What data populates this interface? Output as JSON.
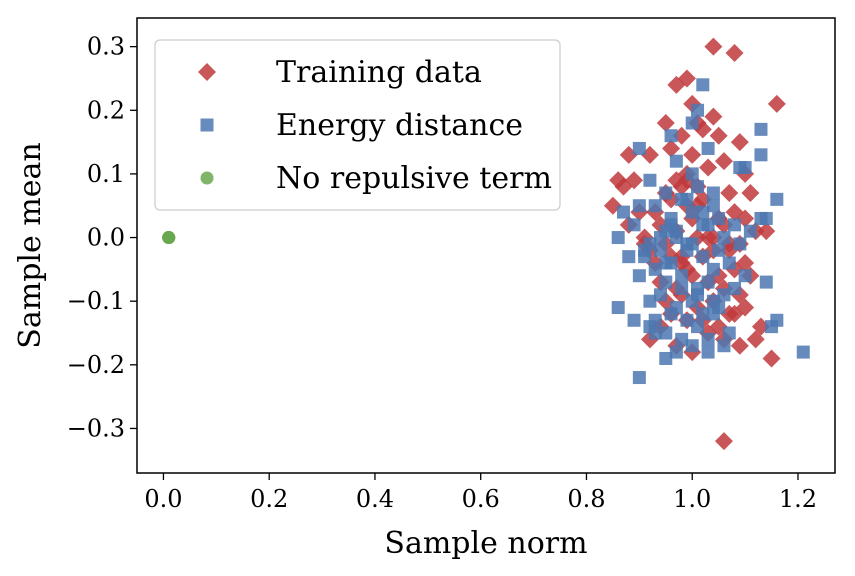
{
  "chart_data": {
    "type": "scatter",
    "title": "",
    "xlabel": "Sample norm",
    "ylabel": "Sample mean",
    "xlim": [
      -0.05,
      1.27
    ],
    "ylim": [
      -0.37,
      0.345
    ],
    "xticks": [
      0.0,
      0.2,
      0.4,
      0.6,
      0.8,
      1.0,
      1.2
    ],
    "xtick_labels": [
      "0.0",
      "0.2",
      "0.4",
      "0.6",
      "0.8",
      "1.0",
      "1.2"
    ],
    "yticks": [
      -0.3,
      -0.2,
      -0.1,
      0.0,
      0.1,
      0.2,
      0.3
    ],
    "ytick_labels": [
      "−0.3",
      "−0.2",
      "−0.1",
      "0.0",
      "0.1",
      "0.2",
      "0.3"
    ],
    "grid": false,
    "legend_position": "top-left",
    "series": [
      {
        "name": "Training data",
        "marker": "diamond",
        "color": "#c0383c",
        "x": [
          1.04,
          1.08,
          0.99,
          0.97,
          0.95,
          1.16,
          1.0,
          1.04,
          1.01,
          1.02,
          0.98,
          0.96,
          1.05,
          1.09,
          0.88,
          0.92,
          1.0,
          0.86,
          0.99,
          1.03,
          1.06,
          1.1,
          0.87,
          0.89,
          0.95,
          0.97,
          0.98,
          1.01,
          1.07,
          0.85,
          0.9,
          0.93,
          0.96,
          0.99,
          1.02,
          1.05,
          1.08,
          1.11,
          1.14,
          0.88,
          0.91,
          0.94,
          0.97,
          1.0,
          1.03,
          1.06,
          1.09,
          1.12,
          0.92,
          0.95,
          0.98,
          1.01,
          1.04,
          1.07,
          1.1,
          0.93,
          0.96,
          0.99,
          1.02,
          1.05,
          1.08,
          1.11,
          0.94,
          0.97,
          1.0,
          1.03,
          1.06,
          1.09,
          0.95,
          0.98,
          1.01,
          1.04,
          1.07,
          1.1,
          0.96,
          0.99,
          1.02,
          1.05,
          1.08,
          0.94,
          0.97,
          1.0,
          1.03,
          1.06,
          1.09,
          1.12,
          1.13,
          0.92,
          0.98,
          1.01,
          1.04,
          1.07,
          1.1,
          1.15,
          0.91,
          0.99,
          1.06
        ],
        "y": [
          0.3,
          0.29,
          0.25,
          0.24,
          0.18,
          0.21,
          0.21,
          0.19,
          0.18,
          0.17,
          0.16,
          0.14,
          0.16,
          0.15,
          0.13,
          0.13,
          0.13,
          0.09,
          0.1,
          0.11,
          0.12,
          0.1,
          0.08,
          0.09,
          0.07,
          0.09,
          0.08,
          0.08,
          0.07,
          0.05,
          0.04,
          0.04,
          0.06,
          0.05,
          0.06,
          0.03,
          0.04,
          0.07,
          0.01,
          0.02,
          0.0,
          0.02,
          0.01,
          0.03,
          0.0,
          0.02,
          -0.01,
          0.01,
          -0.02,
          -0.01,
          -0.03,
          0.0,
          -0.02,
          -0.01,
          -0.04,
          -0.04,
          -0.03,
          -0.05,
          -0.03,
          -0.06,
          -0.05,
          -0.06,
          -0.07,
          -0.08,
          -0.06,
          -0.07,
          -0.08,
          -0.09,
          -0.1,
          -0.09,
          -0.11,
          -0.1,
          -0.12,
          -0.11,
          -0.12,
          -0.13,
          -0.13,
          -0.14,
          -0.12,
          -0.14,
          -0.17,
          -0.18,
          -0.15,
          -0.16,
          -0.17,
          -0.16,
          -0.14,
          -0.16,
          -0.04,
          0.05,
          0.0,
          -0.02,
          0.03,
          -0.19,
          -0.01,
          0.09,
          -0.32
        ]
      },
      {
        "name": "Energy distance",
        "marker": "square",
        "color": "#4c77b0",
        "x": [
          1.02,
          1.01,
          1.0,
          1.13,
          0.96,
          0.9,
          1.1,
          1.03,
          1.13,
          0.97,
          1.0,
          1.09,
          0.92,
          0.95,
          1.16,
          1.01,
          0.99,
          1.04,
          0.87,
          0.9,
          0.93,
          0.96,
          0.98,
          1.02,
          1.05,
          1.08,
          1.11,
          1.13,
          0.86,
          0.89,
          0.92,
          0.95,
          0.97,
          1.0,
          1.03,
          1.06,
          1.09,
          0.91,
          0.94,
          0.96,
          0.99,
          1.02,
          1.04,
          1.07,
          1.1,
          0.9,
          0.93,
          0.95,
          0.98,
          1.01,
          1.03,
          1.06,
          1.08,
          1.14,
          0.92,
          0.94,
          0.97,
          1.0,
          1.02,
          1.05,
          0.93,
          0.96,
          0.99,
          1.01,
          1.04,
          1.07,
          1.15,
          0.92,
          0.95,
          0.98,
          1.0,
          1.03,
          1.06,
          0.86,
          0.88,
          0.91,
          0.94,
          0.97,
          0.99,
          1.02,
          1.05,
          1.14,
          0.95,
          0.98,
          1.01,
          1.04,
          1.16,
          0.89,
          0.93,
          0.97,
          1.03,
          1.21,
          0.95,
          0.9,
          0.96,
          1.0,
          1.04
        ],
        "y": [
          0.24,
          0.2,
          0.18,
          0.17,
          0.16,
          0.14,
          0.11,
          0.14,
          0.13,
          0.12,
          0.1,
          0.11,
          0.09,
          0.07,
          0.06,
          0.08,
          0.06,
          0.07,
          0.04,
          0.05,
          0.05,
          0.03,
          0.06,
          0.04,
          0.03,
          0.02,
          0.01,
          0.03,
          0.0,
          0.02,
          -0.01,
          0.01,
          0.0,
          -0.01,
          0.02,
          0.0,
          -0.01,
          -0.03,
          -0.02,
          -0.04,
          -0.02,
          -0.03,
          -0.05,
          -0.04,
          -0.06,
          -0.06,
          -0.05,
          -0.07,
          -0.06,
          -0.08,
          -0.07,
          -0.09,
          -0.08,
          -0.07,
          -0.1,
          -0.09,
          -0.11,
          -0.1,
          -0.12,
          -0.11,
          -0.13,
          -0.12,
          -0.13,
          -0.14,
          -0.12,
          -0.15,
          -0.14,
          -0.14,
          -0.15,
          -0.16,
          -0.17,
          -0.16,
          -0.17,
          -0.11,
          -0.03,
          -0.02,
          0.0,
          0.01,
          -0.01,
          0.02,
          -0.02,
          0.03,
          -0.04,
          -0.08,
          -0.09,
          -0.1,
          -0.13,
          -0.13,
          -0.15,
          -0.18,
          -0.18,
          -0.18,
          -0.19,
          -0.22,
          0.02,
          0.04,
          0.05
        ]
      },
      {
        "name": "No repulsive term",
        "marker": "circle",
        "color": "#6aa84f",
        "x": [
          0.01,
          0.01,
          0.01,
          0.01,
          0.01
        ],
        "y": [
          0.0,
          0.0,
          0.0,
          0.0,
          0.0
        ]
      }
    ]
  }
}
